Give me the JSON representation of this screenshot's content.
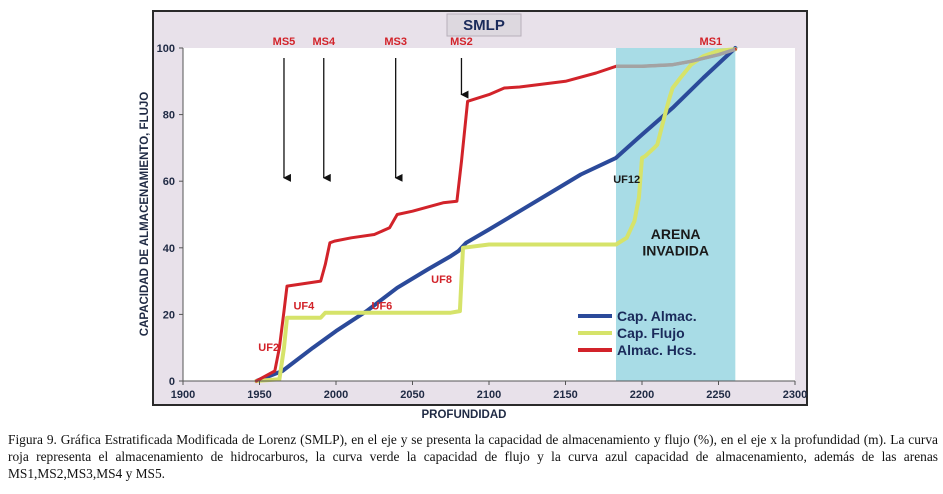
{
  "chart_data": {
    "type": "line",
    "title": "SMLP",
    "xlabel": "PROFUNDIDAD",
    "ylabel": "CAPACIDAD DE ALMACENAMIENTO, FLUJO",
    "xlim": [
      1900,
      2300
    ],
    "ylim": [
      0,
      100
    ],
    "x_ticks": [
      "1900",
      "1950",
      "2000",
      "2050",
      "2100",
      "2150",
      "2200",
      "2250",
      "2300"
    ],
    "y_ticks": [
      "0",
      "20",
      "40",
      "60",
      "80",
      "100"
    ],
    "grid": false,
    "legend_position": "bottom-right",
    "highlight_region": {
      "x_start": 2183,
      "x_end": 2261,
      "label_line1": "ARENA",
      "label_line2": "INVADIDA",
      "color": "#a8dce6"
    },
    "series": [
      {
        "name": "Cap. Almac.",
        "color": "#2b4a9a",
        "x": [
          1948,
          1965,
          1985,
          2000,
          2020,
          2040,
          2060,
          2075,
          2080,
          2085,
          2100,
          2120,
          2140,
          2160,
          2183,
          2200,
          2220,
          2240,
          2261
        ],
        "y": [
          0,
          3,
          10,
          15,
          21,
          28,
          33.5,
          37.5,
          39,
          41.5,
          45.5,
          51,
          56.5,
          62,
          67,
          74,
          82,
          91,
          100
        ]
      },
      {
        "name": "Cap. Flujo",
        "color": "#d6e36a",
        "x": [
          1948,
          1963,
          1966,
          1968,
          1990,
          1993,
          2075,
          2081,
          2083,
          2100,
          2183,
          2190,
          2195,
          2198,
          2200,
          2202,
          2208,
          2210,
          2215,
          2218,
          2220,
          2225,
          2232,
          2240,
          2250,
          2261
        ],
        "y": [
          0,
          0.5,
          10,
          19,
          19,
          20.5,
          20.5,
          21,
          40,
          41,
          41,
          43,
          48,
          55,
          67,
          67.5,
          70,
          71,
          80,
          85,
          88,
          91,
          95,
          97.5,
          99.2,
          99.6
        ]
      },
      {
        "name": "Almac. Hcs.",
        "color": "#d2232a",
        "x": [
          1948,
          1960,
          1963,
          1966,
          1968,
          1990,
          1993,
          1996,
          1999,
          2010,
          2025,
          2035,
          2040,
          2050,
          2070,
          2079,
          2082,
          2086,
          2100,
          2110,
          2120,
          2150,
          2170,
          2183,
          2200,
          2220,
          2232,
          2250,
          2261
        ],
        "y": [
          0,
          3,
          10,
          21,
          28.5,
          30,
          35,
          41.5,
          42,
          43,
          44,
          46,
          50,
          51,
          53.5,
          54,
          66,
          84,
          86,
          88,
          88.3,
          90,
          92.5,
          94.5,
          94.5,
          95,
          96,
          98,
          99.6
        ]
      }
    ],
    "annotations": {
      "ms_labels": [
        {
          "label": "MS5",
          "x": 1966
        },
        {
          "label": "MS4",
          "x": 1992
        },
        {
          "label": "MS3",
          "x": 2039
        },
        {
          "label": "MS2",
          "x": 2082
        },
        {
          "label": "MS1",
          "x": 2245
        }
      ],
      "uf_labels": [
        {
          "label": "UF2",
          "x": 1956,
          "y": 9
        },
        {
          "label": "UF4",
          "x": 1979,
          "y": 21.5
        },
        {
          "label": "UF6",
          "x": 2030,
          "y": 21.5
        },
        {
          "label": "UF8",
          "x": 2069,
          "y": 29.5
        },
        {
          "label": "UF12",
          "x": 2190,
          "y": 59.5
        }
      ]
    }
  },
  "legend": {
    "cap_almac": "Cap. Almac.",
    "cap_flujo": "Cap. Flujo",
    "almac_hcs": "Almac. Hcs."
  },
  "caption": "Figura 9. Gráfica Estratificada Modificada de Lorenz (SMLP), en el eje y se presenta la  capacidad de almacenamiento y flujo (%), en el eje x la profundidad (m). La curva roja representa el almacenamiento de hidrocarburos, la curva verde la capacidad de flujo y la curva azul capacidad de almacenamiento, además de las arenas MS1,MS2,MS3,MS4 y MS5."
}
